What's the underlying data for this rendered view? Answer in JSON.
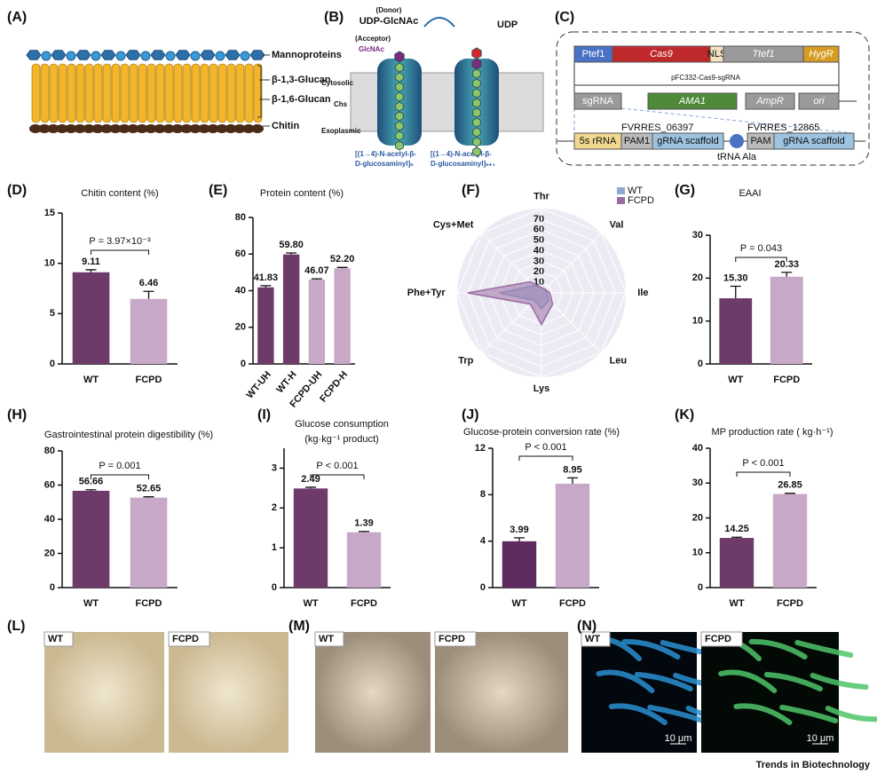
{
  "panel_labels": [
    "(A)",
    "(B)",
    "(C)",
    "(D)",
    "(E)",
    "(F)",
    "(G)",
    "(H)",
    "(I)",
    "(J)",
    "(K)",
    "(L)",
    "(M)",
    "(N)"
  ],
  "diagram_a": {
    "labels": [
      "Mannoproteins",
      "β-1,3-Glucan",
      "β-1,6-Glucan",
      "Chitin"
    ]
  },
  "diagram_b": {
    "donor": "(Donor)",
    "donor_molecule": "UDP-GlcNAc",
    "acceptor": "(Acceptor)",
    "acceptor_molecule": "GlcNAc",
    "product": "UDP",
    "cytosolic": "Cytosolic",
    "enzyme": "Chs",
    "exoplasmic": "Exoplasmic",
    "chain_n": [
      "[(1→4)-N-acetyl-β-",
      "D-glucosaminyl]ₙ"
    ],
    "chain_n1": [
      "[(1→4)-N-acetyl-β-",
      "D-glucosaminyl]ₙ₊₁"
    ]
  },
  "diagram_c": {
    "plasmid": "pFC332-Cas9-sgRNA",
    "row1": [
      "Ptef1",
      "Cas9",
      "NLS",
      "Ttef1",
      "HygR"
    ],
    "row2": [
      "sgRNA",
      "AMA1",
      "AmpR",
      "ori"
    ],
    "row3": [
      "5s rRNA",
      "PAM1",
      "gRNA scaffold",
      "PAM",
      "gRNA scaffold"
    ],
    "targets": [
      "FVRRES_06397",
      "FVRRES_12865"
    ],
    "trna": "tRNA Ala"
  },
  "chart_data": [
    {
      "type": "bar",
      "title": "Chitin content (%)",
      "categories": [
        "WT",
        "FCPD"
      ],
      "values": [
        9.11,
        6.46
      ],
      "value_labels": [
        "9.11",
        "6.46"
      ],
      "errors": [
        0.25,
        0.75
      ],
      "colors": [
        "#6e3a6a",
        "#c7a8c7"
      ],
      "ylim": [
        0,
        15
      ],
      "yticks": [
        0,
        5,
        10,
        15
      ],
      "annotation": "P = 3.97×10⁻³"
    },
    {
      "type": "bar",
      "title": "Protein content (%)",
      "categories": [
        "WT-UH",
        "WT-H",
        "FCPD-UH",
        "FCPD-H"
      ],
      "values": [
        41.83,
        59.8,
        46.07,
        52.2
      ],
      "value_labels": [
        "41.83",
        "59.80",
        "46.07",
        "52.20"
      ],
      "errors": [
        0.9,
        0.8,
        0.4,
        0.5
      ],
      "colors": [
        "#6e3a6a",
        "#6e3a6a",
        "#c7a8c7",
        "#c7a8c7"
      ],
      "ylim": [
        0,
        80
      ],
      "yticks": [
        0,
        20,
        40,
        60,
        80
      ]
    },
    {
      "type": "radar",
      "categories": [
        "Thr",
        "Val",
        "Ile",
        "Leu",
        "Lys",
        "Trp",
        "Phe+Tyr",
        "Cys+Met"
      ],
      "series": [
        {
          "name": "WT",
          "color": "#8da9cc",
          "values": [
            5,
            5,
            5,
            10,
            15,
            10,
            40,
            10
          ]
        },
        {
          "name": "FCPD",
          "color": "#9a6ca2",
          "values": [
            5,
            5,
            8,
            15,
            30,
            15,
            70,
            15
          ]
        }
      ],
      "rlim": [
        0,
        80
      ],
      "rticks": [
        10,
        20,
        30,
        40,
        50,
        60,
        70
      ],
      "legend": "top-right"
    },
    {
      "type": "bar",
      "title": "EAAI",
      "categories": [
        "WT",
        "FCPD"
      ],
      "values": [
        15.3,
        20.33
      ],
      "value_labels": [
        "15.30",
        "20.33"
      ],
      "errors": [
        2.8,
        1.0
      ],
      "colors": [
        "#6e3a6a",
        "#c7a8c7"
      ],
      "ylim": [
        0,
        30
      ],
      "yticks": [
        0,
        10,
        20,
        30
      ],
      "annotation": "P = 0.043"
    },
    {
      "type": "bar",
      "title": "Gastrointestinal protein digestibility (%)",
      "categories": [
        "WT",
        "FCPD"
      ],
      "values": [
        56.66,
        52.65
      ],
      "value_labels": [
        "56.66",
        "52.65"
      ],
      "errors": [
        0.6,
        0.5
      ],
      "colors": [
        "#6e3a6a",
        "#c7a8c7"
      ],
      "ylim": [
        0,
        80
      ],
      "yticks": [
        0,
        20,
        40,
        60,
        80
      ],
      "annotation": "P = 0.001"
    },
    {
      "type": "bar",
      "title": "Glucose consumption",
      "subtitle": "(kg·kg⁻¹ product)",
      "categories": [
        "WT",
        "FCPD"
      ],
      "values": [
        2.49,
        1.39
      ],
      "value_labels": [
        "2.49",
        "1.39"
      ],
      "errors": [
        0.03,
        0.02
      ],
      "colors": [
        "#6e3a6a",
        "#c7a8c7"
      ],
      "ylim": [
        0,
        3.5
      ],
      "yticks": [
        0,
        1,
        2,
        3
      ],
      "annotation": "P < 0.001"
    },
    {
      "type": "bar",
      "title": "Glucose-protein conversion rate (%)",
      "categories": [
        "WT",
        "FCPD"
      ],
      "values": [
        3.99,
        8.95
      ],
      "value_labels": [
        "3.99",
        "8.95"
      ],
      "errors": [
        0.3,
        0.5
      ],
      "colors": [
        "#5e2a60",
        "#c7a8c7"
      ],
      "ylim": [
        0,
        12
      ],
      "yticks": [
        0,
        4,
        8,
        12
      ],
      "annotation": "P < 0.001"
    },
    {
      "type": "bar",
      "title": "MP production rate ( kg·h⁻¹)",
      "categories": [
        "WT",
        "FCPD"
      ],
      "values": [
        14.25,
        26.85
      ],
      "value_labels": [
        "14.25",
        "26.85"
      ],
      "errors": [
        0.2,
        0.2
      ],
      "colors": [
        "#6e3a6a",
        "#c7a8c7"
      ],
      "ylim": [
        0,
        40
      ],
      "yticks": [
        0,
        10,
        20,
        30,
        40
      ],
      "annotation": "P < 0.001"
    }
  ],
  "photos": {
    "panel_l": [
      "WT",
      "FCPD"
    ],
    "panel_m": [
      "WT",
      "FCPD"
    ],
    "panel_n": [
      "WT",
      "FCPD"
    ],
    "scale_bar": "10 μm"
  },
  "footer": "Trends in Biotechnology"
}
